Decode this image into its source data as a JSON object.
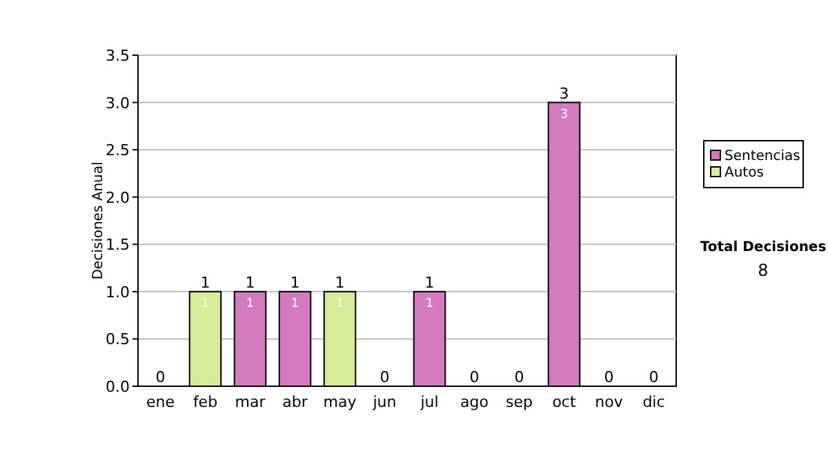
{
  "chart_data": {
    "type": "bar",
    "stacked": true,
    "ylabel": "Decisiones Anual",
    "categories": [
      "ene",
      "feb",
      "mar",
      "abr",
      "may",
      "jun",
      "jul",
      "ago",
      "sep",
      "oct",
      "nov",
      "dic"
    ],
    "series": [
      {
        "name": "Sentencias",
        "color": "#d47bbf",
        "values": [
          0,
          0,
          1,
          1,
          0,
          0,
          1,
          0,
          0,
          3,
          0,
          0
        ],
        "value_labels": [
          null,
          null,
          "1",
          "1",
          null,
          null,
          "1",
          null,
          null,
          "3",
          null,
          null
        ]
      },
      {
        "name": "Autos",
        "color": "#d6ec98",
        "values": [
          0,
          1,
          0,
          0,
          1,
          0,
          0,
          0,
          0,
          0,
          0,
          0
        ],
        "value_labels": [
          null,
          "1",
          null,
          null,
          "1",
          null,
          null,
          null,
          null,
          null,
          null,
          null
        ]
      }
    ],
    "totals": [
      "0",
      "1",
      "1",
      "1",
      "1",
      "0",
      "1",
      "0",
      "0",
      "3",
      "0",
      "0"
    ],
    "ylim": [
      0,
      3.5
    ],
    "yticks": [
      {
        "value": 0,
        "label": "0.0"
      },
      {
        "value": 0.5,
        "label": "0.5"
      },
      {
        "value": 1,
        "label": "1.0"
      },
      {
        "value": 1.5,
        "label": "1.5"
      },
      {
        "value": 2,
        "label": "2.0"
      },
      {
        "value": 2.5,
        "label": "2.5"
      },
      {
        "value": 3,
        "label": "3.0"
      },
      {
        "value": 3.5,
        "label": "3.5"
      }
    ],
    "grid": "y",
    "legend": "right",
    "annotations": [
      "Total Decisiones",
      "8"
    ]
  }
}
